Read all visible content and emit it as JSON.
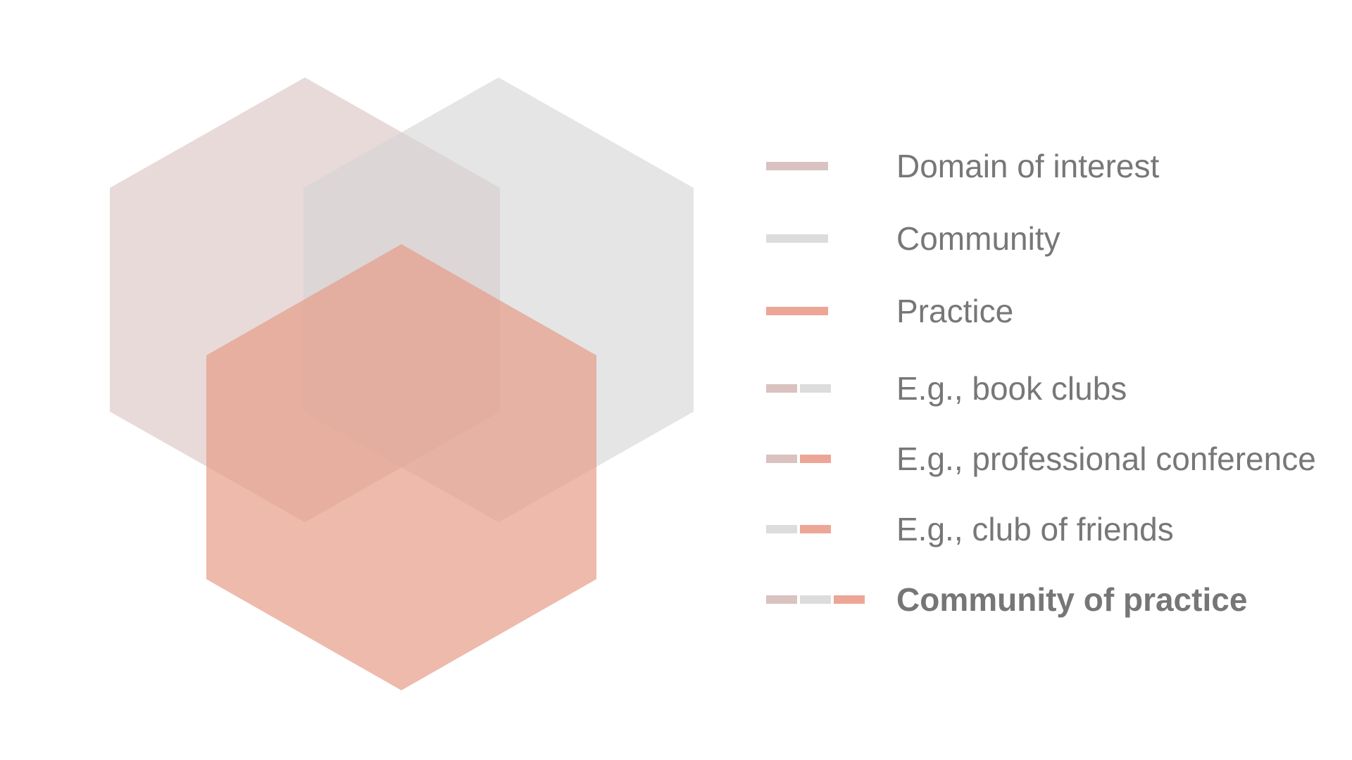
{
  "colors": {
    "domain": "#d9c2bf",
    "community": "#dcdcdc",
    "practice": "#eda696",
    "text": "#777777"
  },
  "hexagons": [
    {
      "name": "domain-of-interest-hexagon",
      "color": "#d9c2bf",
      "opacity": 0.6
    },
    {
      "name": "community-hexagon",
      "color": "#d4d4d4",
      "opacity": 0.6
    },
    {
      "name": "practice-hexagon",
      "color": "#e59c88",
      "opacity": 0.7
    }
  ],
  "legend": {
    "items": [
      {
        "label": "Domain of interest",
        "swatches": [
          "domain"
        ],
        "bold": false
      },
      {
        "label": "Community",
        "swatches": [
          "community"
        ],
        "bold": false
      },
      {
        "label": "Practice",
        "swatches": [
          "practice"
        ],
        "bold": false
      },
      {
        "label": "E.g., book clubs",
        "swatches": [
          "domain",
          "community"
        ],
        "bold": false
      },
      {
        "label": "E.g., professional conference",
        "swatches": [
          "domain",
          "practice"
        ],
        "bold": false
      },
      {
        "label": "E.g., club of friends",
        "swatches": [
          "community",
          "practice"
        ],
        "bold": false
      },
      {
        "label": "Community of practice",
        "swatches": [
          "domain",
          "community",
          "practice"
        ],
        "bold": true
      }
    ]
  }
}
